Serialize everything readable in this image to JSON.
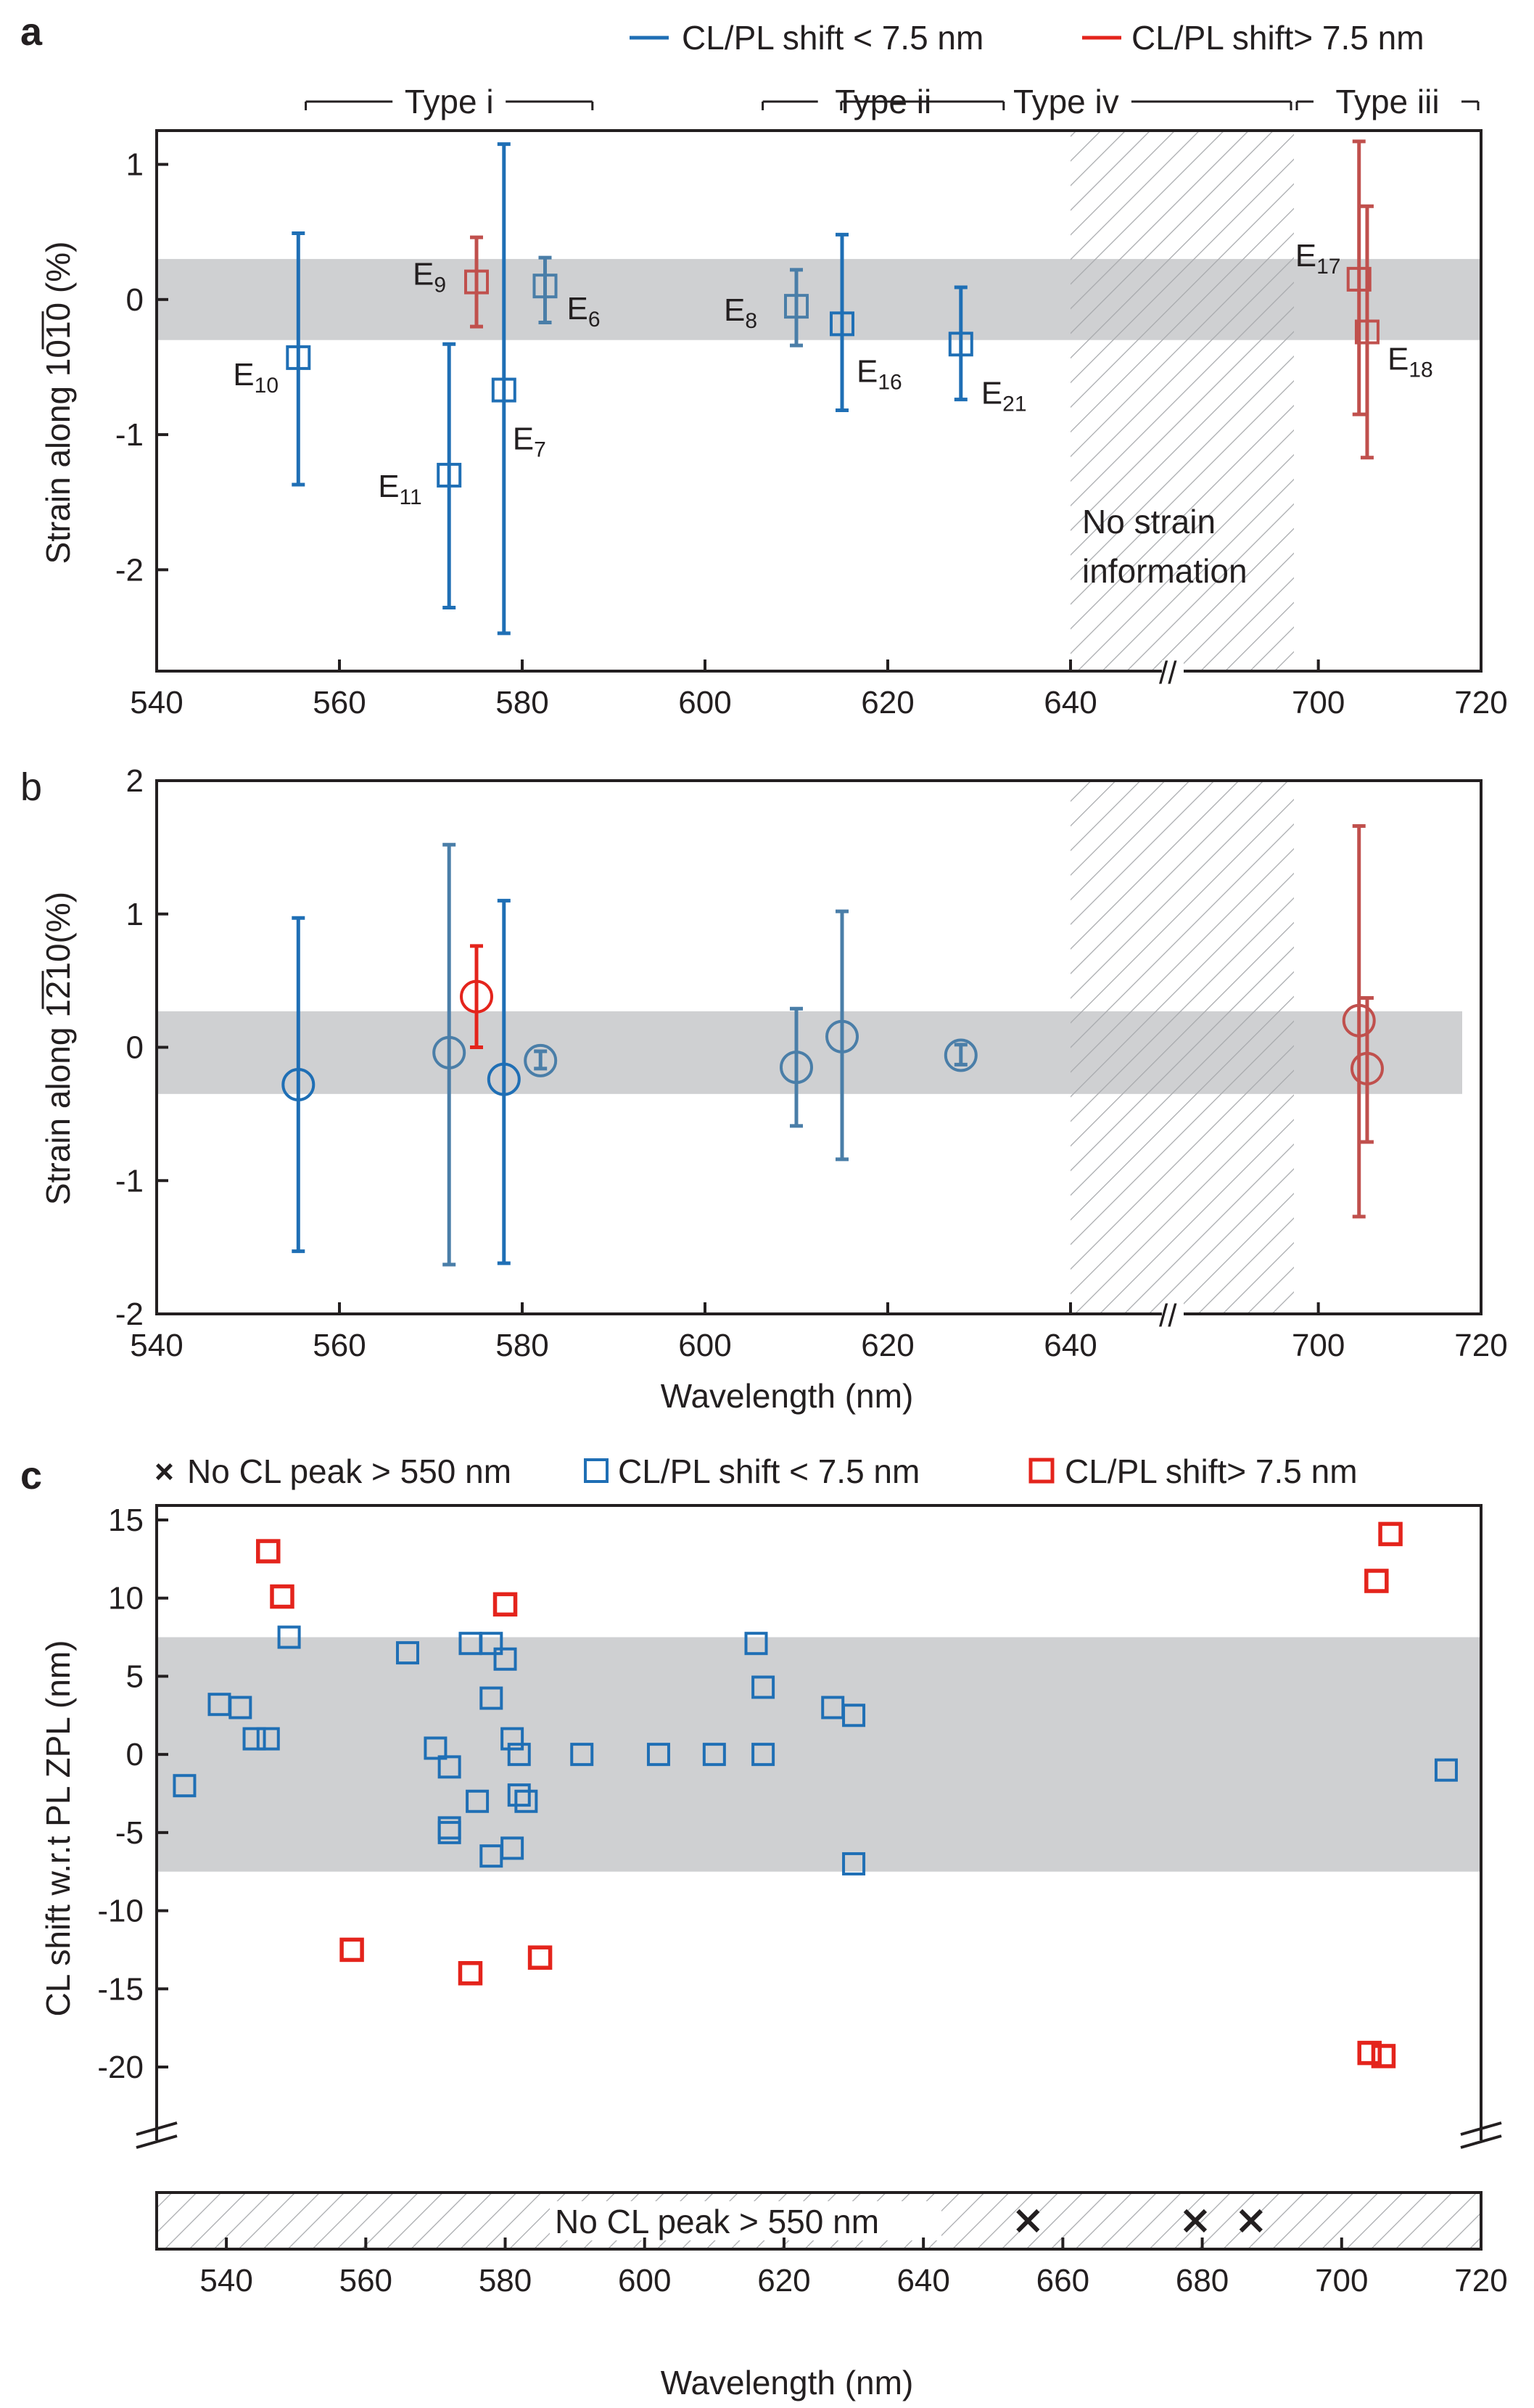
{
  "colors": {
    "blue": "#1f6fb5",
    "gray_blue": "#4a7ea8",
    "red": "#e4241c",
    "red_muted": "#c0504d",
    "band": "#cfd0d2",
    "axis": "#231f20",
    "hatch": "#a7a9ac"
  },
  "chart_data": [
    {
      "panel": "a",
      "type": "scatter",
      "marker": "square",
      "ylabel": "Strain along 10̅1̅0 (%)",
      "xlabel": "",
      "x_ticks": [
        "540",
        "560",
        "580",
        "600",
        "620",
        "640",
        "700",
        "720"
      ],
      "y_ticks": [
        "1",
        "0",
        "-1",
        "-2"
      ],
      "xlim": [
        540,
        720
      ],
      "ylim": [
        -2.75,
        1.25
      ],
      "axis_break": "//",
      "band": [
        -0.3,
        0.3
      ],
      "hatch_label": "No strain information",
      "legend": [
        {
          "name": "CL/PL shift < 7.5 nm",
          "color": "blue"
        },
        {
          "name": "CL/PL shift> 7.5 nm",
          "color": "red"
        }
      ],
      "type_brackets": [
        {
          "label": "Type i",
          "from": 556,
          "to": 588
        },
        {
          "label": "Type ii",
          "from": 606,
          "to": 633
        },
        {
          "label": "Type iv",
          "from": 641,
          "to": 697
        },
        {
          "label": "Type iii",
          "from": 697,
          "to": 720
        }
      ],
      "points": [
        {
          "label": "E",
          "sub": "10",
          "x": 555.5,
          "y": -0.43,
          "lo": -1.37,
          "hi": 0.49,
          "color": "blue"
        },
        {
          "label": "E",
          "sub": "11",
          "x": 572,
          "y": -1.3,
          "lo": -2.28,
          "hi": -0.33,
          "color": "blue"
        },
        {
          "label": "E",
          "sub": "9",
          "x": 575,
          "y": 0.13,
          "lo": -0.2,
          "hi": 0.46,
          "color": "red_muted"
        },
        {
          "label": "E",
          "sub": "7",
          "x": 578,
          "y": -0.67,
          "lo": -2.47,
          "hi": 1.15,
          "color": "blue"
        },
        {
          "label": "E",
          "sub": "6",
          "x": 582.5,
          "y": 0.1,
          "lo": -0.17,
          "hi": 0.31,
          "color": "gray_blue"
        },
        {
          "label": "E",
          "sub": "8",
          "x": 610,
          "y": -0.05,
          "lo": -0.34,
          "hi": 0.22,
          "color": "gray_blue"
        },
        {
          "label": "E",
          "sub": "16",
          "x": 615,
          "y": -0.18,
          "lo": -0.82,
          "hi": 0.48,
          "color": "blue"
        },
        {
          "label": "E",
          "sub": "21",
          "x": 628,
          "y": -0.33,
          "lo": -0.74,
          "hi": 0.09,
          "color": "blue"
        },
        {
          "label": "E",
          "sub": "17",
          "x": 705,
          "y": 0.15,
          "lo": -0.85,
          "hi": 1.17,
          "color": "red_muted"
        },
        {
          "label": "E",
          "sub": "18",
          "x": 706,
          "y": -0.24,
          "lo": -1.17,
          "hi": 0.69,
          "color": "red_muted"
        }
      ]
    },
    {
      "panel": "b",
      "type": "scatter",
      "marker": "circle",
      "ylabel": "Strain along 1̅2̅10(%)",
      "xlabel": "Wavelength (nm)",
      "x_ticks": [
        "540",
        "560",
        "580",
        "600",
        "620",
        "640",
        "700",
        "720"
      ],
      "y_ticks": [
        "2",
        "1",
        "0",
        "-1",
        "-2"
      ],
      "xlim": [
        540,
        720
      ],
      "ylim": [
        -2,
        2
      ],
      "axis_break": "//",
      "band": [
        -0.35,
        0.27
      ],
      "points": [
        {
          "x": 555.5,
          "y": -0.28,
          "lo": -1.53,
          "hi": 0.97,
          "color": "blue"
        },
        {
          "x": 572,
          "y": -0.04,
          "lo": -1.63,
          "hi": 1.52,
          "color": "gray_blue"
        },
        {
          "x": 575,
          "y": 0.38,
          "lo": 0.0,
          "hi": 0.76,
          "color": "red"
        },
        {
          "x": 578,
          "y": -0.24,
          "lo": -1.62,
          "hi": 1.1,
          "color": "blue"
        },
        {
          "x": 582,
          "y": -0.1,
          "lo": -0.16,
          "hi": -0.03,
          "color": "gray_blue"
        },
        {
          "x": 610,
          "y": -0.15,
          "lo": -0.59,
          "hi": 0.29,
          "color": "gray_blue"
        },
        {
          "x": 615,
          "y": 0.08,
          "lo": -0.84,
          "hi": 1.02,
          "color": "gray_blue"
        },
        {
          "x": 628,
          "y": -0.06,
          "lo": -0.13,
          "hi": 0.02,
          "color": "gray_blue"
        },
        {
          "x": 705,
          "y": 0.2,
          "lo": -1.27,
          "hi": 1.66,
          "color": "red_muted"
        },
        {
          "x": 706,
          "y": -0.16,
          "lo": -0.71,
          "hi": 0.37,
          "color": "red_muted"
        }
      ]
    },
    {
      "panel": "c",
      "type": "scatter",
      "marker": "square",
      "ylabel": "CL shift w.r.t PL ZPL (nm)",
      "xlabel": "Wavelength (nm)",
      "x_ticks": [
        "540",
        "560",
        "580",
        "600",
        "620",
        "640",
        "660",
        "680",
        "700",
        "720"
      ],
      "y_ticks": [
        "15",
        "10",
        "5",
        "0",
        "-5",
        "-10",
        "-15",
        "-20"
      ],
      "xlim": [
        530,
        720
      ],
      "ylim": [
        -23,
        15
      ],
      "band": [
        -7.5,
        7.5
      ],
      "legend": [
        {
          "name": "No CL peak > 550 nm",
          "marker": "x"
        },
        {
          "name": "CL/PL shift < 7.5 nm",
          "color": "blue"
        },
        {
          "name": "CL/PL shift> 7.5 nm",
          "color": "red"
        }
      ],
      "no_peak_label": "No CL peak > 550 nm",
      "no_peak_x": [
        655,
        679,
        687
      ],
      "blue_points": [
        [
          534,
          -2
        ],
        [
          539,
          3.2
        ],
        [
          542,
          3
        ],
        [
          544,
          1
        ],
        [
          546,
          1
        ],
        [
          549,
          7.5
        ],
        [
          566,
          6.5
        ],
        [
          570,
          0.4
        ],
        [
          572,
          -0.8
        ],
        [
          572,
          -4.7
        ],
        [
          572,
          -5
        ],
        [
          575,
          7.1
        ],
        [
          576,
          -3
        ],
        [
          578,
          7.1
        ],
        [
          578,
          3.6
        ],
        [
          578,
          -6.5
        ],
        [
          580,
          6.1
        ],
        [
          581,
          1
        ],
        [
          581,
          -6
        ],
        [
          582,
          0
        ],
        [
          582,
          -2.6
        ],
        [
          583,
          -3
        ],
        [
          591,
          0
        ],
        [
          602,
          0
        ],
        [
          610,
          0
        ],
        [
          616,
          7.1
        ],
        [
          617,
          4.3
        ],
        [
          617,
          0
        ],
        [
          627,
          3
        ],
        [
          630,
          2.5
        ],
        [
          630,
          -7
        ],
        [
          715,
          -1
        ]
      ],
      "red_points": [
        [
          546,
          13
        ],
        [
          548,
          10.1
        ],
        [
          558,
          -12.5
        ],
        [
          575,
          -14
        ],
        [
          580,
          9.6
        ],
        [
          585,
          -13
        ],
        [
          704,
          -19.1
        ],
        [
          705,
          11.1
        ],
        [
          706,
          -19.3
        ],
        [
          707,
          14.1
        ]
      ]
    }
  ]
}
